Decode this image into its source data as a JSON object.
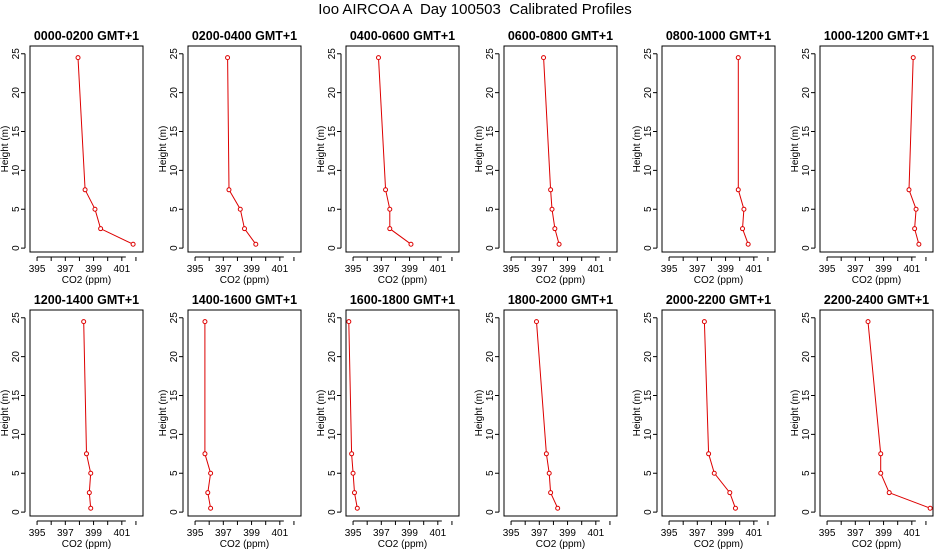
{
  "title": "Ioo AIRCOA A  Day 100503  Calibrated Profiles",
  "colors": {
    "series": "#dd0000",
    "axis": "#000000"
  },
  "chart_data": [
    {
      "type": "line",
      "title": "0000-0200 GMT+1",
      "xlabel": "CO2 (ppm)",
      "ylabel": "Height (m)",
      "xlim": [
        394.5,
        402.5
      ],
      "ylim": [
        -0.5,
        26
      ],
      "xticks": [
        395,
        397,
        399,
        401
      ],
      "yticks": [
        0,
        5,
        10,
        15,
        20,
        25
      ],
      "series": [
        {
          "x": [
            401.8,
            399.5,
            399.1,
            398.4,
            397.9
          ],
          "y": [
            0.5,
            2.5,
            5,
            7.5,
            24.5
          ]
        }
      ]
    },
    {
      "type": "line",
      "title": "0200-0400 GMT+1",
      "xlabel": "CO2 (ppm)",
      "ylabel": "Height (m)",
      "xlim": [
        394.5,
        402.5
      ],
      "ylim": [
        -0.5,
        26
      ],
      "xticks": [
        395,
        397,
        399,
        401
      ],
      "yticks": [
        0,
        5,
        10,
        15,
        20,
        25
      ],
      "series": [
        {
          "x": [
            399.3,
            398.5,
            398.2,
            397.4,
            397.3
          ],
          "y": [
            0.5,
            2.5,
            5,
            7.5,
            24.5
          ]
        }
      ]
    },
    {
      "type": "line",
      "title": "0400-0600 GMT+1",
      "xlabel": "CO2 (ppm)",
      "ylabel": "Height (m)",
      "xlim": [
        394.5,
        402.5
      ],
      "ylim": [
        -0.5,
        26
      ],
      "xticks": [
        395,
        397,
        399,
        401
      ],
      "yticks": [
        0,
        5,
        10,
        15,
        20,
        25
      ],
      "series": [
        {
          "x": [
            399.1,
            397.6,
            397.6,
            397.3,
            396.8
          ],
          "y": [
            0.5,
            2.5,
            5,
            7.5,
            24.5
          ]
        }
      ]
    },
    {
      "type": "line",
      "title": "0600-0800 GMT+1",
      "xlabel": "CO2 (ppm)",
      "ylabel": "Height (m)",
      "xlim": [
        394.5,
        402.5
      ],
      "ylim": [
        -0.5,
        26
      ],
      "xticks": [
        395,
        397,
        399,
        401
      ],
      "yticks": [
        0,
        5,
        10,
        15,
        20,
        25
      ],
      "series": [
        {
          "x": [
            398.4,
            398.1,
            397.9,
            397.8,
            397.3
          ],
          "y": [
            0.5,
            2.5,
            5,
            7.5,
            24.5
          ]
        }
      ]
    },
    {
      "type": "line",
      "title": "0800-1000 GMT+1",
      "xlabel": "CO2 (ppm)",
      "ylabel": "Height (m)",
      "xlim": [
        394.5,
        402.5
      ],
      "ylim": [
        -0.5,
        26
      ],
      "xticks": [
        395,
        397,
        399,
        401
      ],
      "yticks": [
        0,
        5,
        10,
        15,
        20,
        25
      ],
      "series": [
        {
          "x": [
            400.6,
            400.2,
            400.3,
            399.9,
            399.9
          ],
          "y": [
            0.5,
            2.5,
            5,
            7.5,
            24.5
          ]
        }
      ]
    },
    {
      "type": "line",
      "title": "1000-1200 GMT+1",
      "xlabel": "CO2 (ppm)",
      "ylabel": "Height (m)",
      "xlim": [
        394.5,
        402.5
      ],
      "ylim": [
        -0.5,
        26
      ],
      "xticks": [
        395,
        397,
        399,
        401
      ],
      "yticks": [
        0,
        5,
        10,
        15,
        20,
        25
      ],
      "series": [
        {
          "x": [
            401.5,
            401.2,
            401.3,
            400.8,
            401.1
          ],
          "y": [
            0.5,
            2.5,
            5,
            7.5,
            24.5
          ]
        }
      ]
    },
    {
      "type": "line",
      "title": "1200-1400 GMT+1",
      "xlabel": "CO2 (ppm)",
      "ylabel": "Height (m)",
      "xlim": [
        394.5,
        402.5
      ],
      "ylim": [
        -0.5,
        26
      ],
      "xticks": [
        395,
        397,
        399,
        401
      ],
      "yticks": [
        0,
        5,
        10,
        15,
        20,
        25
      ],
      "series": [
        {
          "x": [
            398.8,
            398.7,
            398.8,
            398.5,
            398.3
          ],
          "y": [
            0.5,
            2.5,
            5,
            7.5,
            24.5
          ]
        }
      ]
    },
    {
      "type": "line",
      "title": "1400-1600 GMT+1",
      "xlabel": "CO2 (ppm)",
      "ylabel": "Height (m)",
      "xlim": [
        394.5,
        402.5
      ],
      "ylim": [
        -0.5,
        26
      ],
      "xticks": [
        395,
        397,
        399,
        401
      ],
      "yticks": [
        0,
        5,
        10,
        15,
        20,
        25
      ],
      "series": [
        {
          "x": [
            396.1,
            395.9,
            396.1,
            395.7,
            395.7
          ],
          "y": [
            0.5,
            2.5,
            5,
            7.5,
            24.5
          ]
        }
      ]
    },
    {
      "type": "line",
      "title": "1600-1800 GMT+1",
      "xlabel": "CO2 (ppm)",
      "ylabel": "Height (m)",
      "xlim": [
        394.5,
        402.5
      ],
      "ylim": [
        -0.5,
        26
      ],
      "xticks": [
        395,
        397,
        399,
        401
      ],
      "yticks": [
        0,
        5,
        10,
        15,
        20,
        25
      ],
      "series": [
        {
          "x": [
            395.3,
            395.1,
            395.0,
            394.9,
            394.7
          ],
          "y": [
            0.5,
            2.5,
            5,
            7.5,
            24.5
          ]
        }
      ]
    },
    {
      "type": "line",
      "title": "1800-2000 GMT+1",
      "xlabel": "CO2 (ppm)",
      "ylabel": "Height (m)",
      "xlim": [
        394.5,
        402.5
      ],
      "ylim": [
        -0.5,
        26
      ],
      "xticks": [
        395,
        397,
        399,
        401
      ],
      "yticks": [
        0,
        5,
        10,
        15,
        20,
        25
      ],
      "series": [
        {
          "x": [
            398.3,
            397.8,
            397.7,
            397.5,
            396.8
          ],
          "y": [
            0.5,
            2.5,
            5,
            7.5,
            24.5
          ]
        }
      ]
    },
    {
      "type": "line",
      "title": "2000-2200 GMT+1",
      "xlabel": "CO2 (ppm)",
      "ylabel": "Height (m)",
      "xlim": [
        394.5,
        402.5
      ],
      "ylim": [
        -0.5,
        26
      ],
      "xticks": [
        395,
        397,
        399,
        401
      ],
      "yticks": [
        0,
        5,
        10,
        15,
        20,
        25
      ],
      "series": [
        {
          "x": [
            399.7,
            399.3,
            398.2,
            397.8,
            397.5
          ],
          "y": [
            0.5,
            2.5,
            5,
            7.5,
            24.5
          ]
        }
      ]
    },
    {
      "type": "line",
      "title": "2200-2400 GMT+1",
      "xlabel": "CO2 (ppm)",
      "ylabel": "Height (m)",
      "xlim": [
        394.5,
        402.5
      ],
      "ylim": [
        -0.5,
        26
      ],
      "xticks": [
        395,
        397,
        399,
        401
      ],
      "yticks": [
        0,
        5,
        10,
        15,
        20,
        25
      ],
      "series": [
        {
          "x": [
            402.3,
            399.4,
            398.8,
            398.8,
            397.9
          ],
          "y": [
            0.5,
            2.5,
            5,
            7.5,
            24.5
          ]
        }
      ]
    }
  ]
}
